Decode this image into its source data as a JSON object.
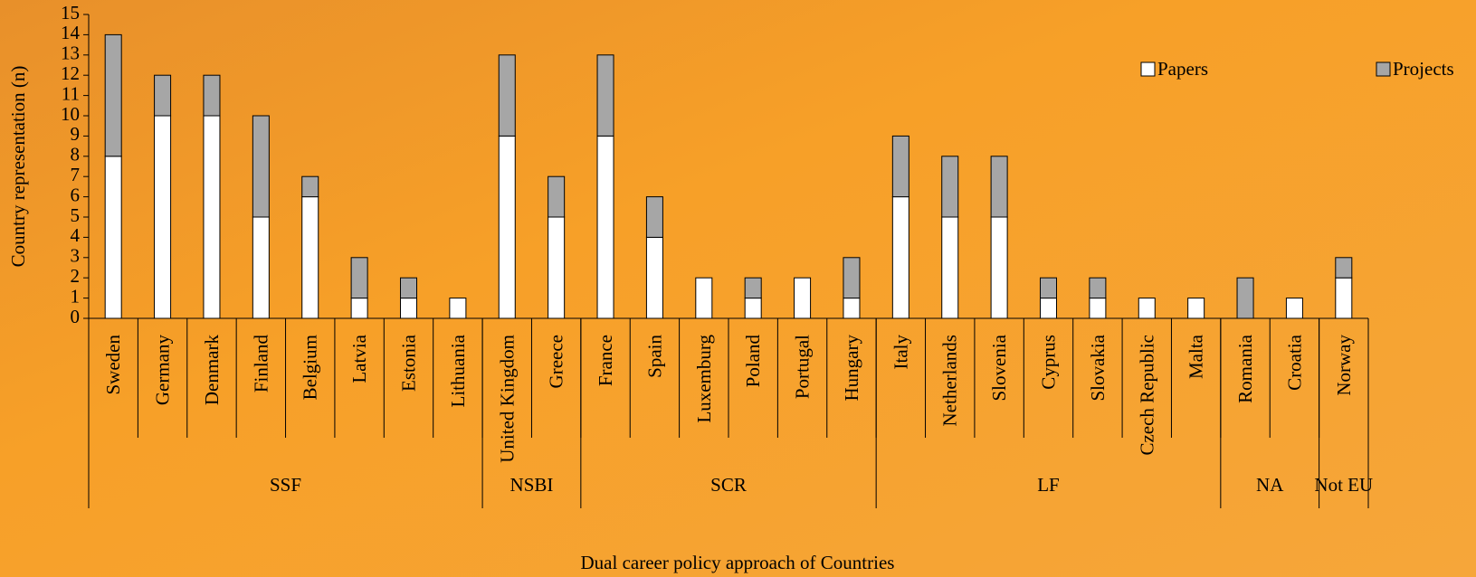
{
  "chart_data": {
    "type": "stacked-bar",
    "y_label": "Country representation (n)",
    "x_label": "Dual career policy approach of Countries",
    "groups": [
      {
        "name": "SSF",
        "categories": [
          "Sweden",
          "Germany",
          "Denmark",
          "Finland",
          "Belgium",
          "Latvia",
          "Estonia",
          "Lithuania"
        ]
      },
      {
        "name": "NSBI",
        "categories": [
          "United Kingdom",
          "Greece"
        ]
      },
      {
        "name": "SCR",
        "categories": [
          "France",
          "Spain",
          "Luxemburg",
          "Poland",
          "Portugal",
          "Hungary"
        ]
      },
      {
        "name": "LF",
        "categories": [
          "Italy",
          "Netherlands",
          "Slovenia",
          "Cyprus",
          "Slovakia",
          "Czech Republic",
          "Malta"
        ]
      },
      {
        "name": "NA",
        "categories": [
          "Romania",
          "Croatia"
        ]
      },
      {
        "name": "Not EU",
        "categories": [
          "Norway"
        ]
      }
    ],
    "series": [
      {
        "name": "Papers",
        "color": "#ffffff",
        "values": [
          8,
          10,
          10,
          5,
          6,
          1,
          1,
          1,
          9,
          5,
          9,
          4,
          2,
          1,
          2,
          1,
          6,
          5,
          5,
          1,
          1,
          1,
          1,
          0,
          1,
          2
        ]
      },
      {
        "name": "Projects",
        "color": "#a6a6a6",
        "values": [
          6,
          2,
          2,
          5,
          1,
          2,
          1,
          0,
          4,
          2,
          4,
          2,
          0,
          1,
          0,
          2,
          3,
          3,
          3,
          1,
          1,
          0,
          0,
          2,
          0,
          1
        ]
      }
    ],
    "ylim": [
      0,
      15
    ],
    "yticks": [
      0,
      1,
      2,
      3,
      4,
      5,
      6,
      7,
      8,
      9,
      10,
      11,
      12,
      13,
      14,
      15
    ]
  }
}
